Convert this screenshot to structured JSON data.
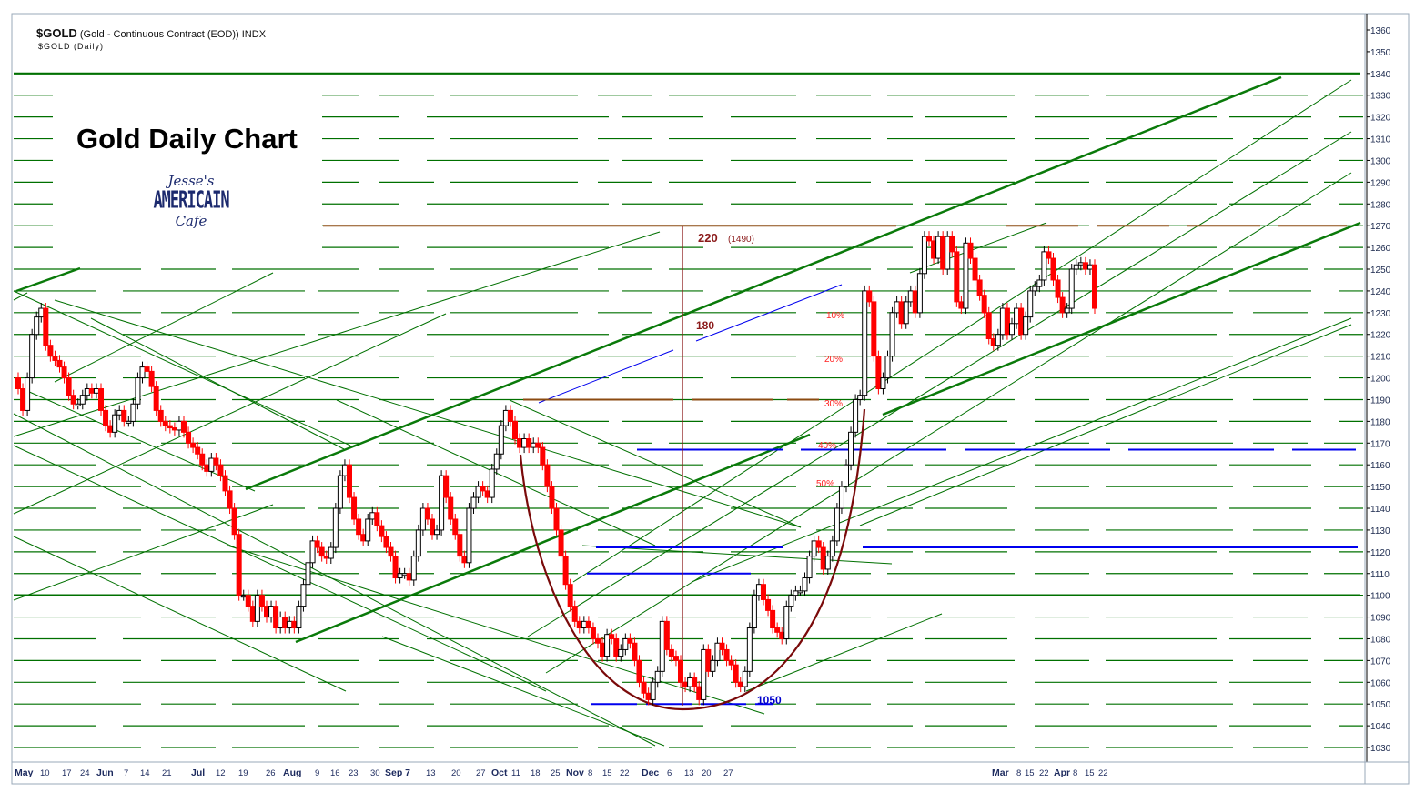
{
  "header": {
    "symbol": "$GOLD",
    "description": "(Gold - Continuous Contract (EOD)) INDX",
    "subtitle": "$GOLD (Daily)"
  },
  "overlay": {
    "title": "Gold Daily Chart",
    "logo_top": "Jesse's",
    "logo_mid": "AMERICAIN",
    "logo_bottom": "Cafe"
  },
  "chart_data": {
    "type": "candlestick",
    "title": "Gold Daily Chart",
    "ylim": [
      1025,
      1365
    ],
    "y_ticks": [
      1030,
      1040,
      1050,
      1060,
      1070,
      1080,
      1090,
      1100,
      1110,
      1120,
      1130,
      1140,
      1150,
      1160,
      1170,
      1180,
      1190,
      1200,
      1210,
      1220,
      1230,
      1240,
      1250,
      1260,
      1270,
      1280,
      1290,
      1300,
      1310,
      1320,
      1330,
      1340,
      1350,
      1360
    ],
    "x_ticks": [
      {
        "label": "May",
        "bold": true
      },
      {
        "label": "10"
      },
      {
        "label": "17"
      },
      {
        "label": "24"
      },
      {
        "label": "Jun",
        "bold": true
      },
      {
        "label": "7"
      },
      {
        "label": "14"
      },
      {
        "label": "21"
      },
      {
        "label": "Jul",
        "bold": true
      },
      {
        "label": "12"
      },
      {
        "label": "19"
      },
      {
        "label": "26"
      },
      {
        "label": "Aug",
        "bold": true
      },
      {
        "label": "9"
      },
      {
        "label": "16"
      },
      {
        "label": "23"
      },
      {
        "label": "30"
      },
      {
        "label": "Sep 7",
        "bold": true
      },
      {
        "label": "13"
      },
      {
        "label": "20"
      },
      {
        "label": "27"
      },
      {
        "label": "Oct",
        "bold": true
      },
      {
        "label": "11"
      },
      {
        "label": "18"
      },
      {
        "label": "25"
      },
      {
        "label": "Nov",
        "bold": true
      },
      {
        "label": "8"
      },
      {
        "label": "15"
      },
      {
        "label": "22"
      },
      {
        "label": "Dec",
        "bold": true
      },
      {
        "label": "6"
      },
      {
        "label": "13"
      },
      {
        "label": "20"
      },
      {
        "label": "27"
      },
      {
        "label": "Mar",
        "bold": true
      },
      {
        "label": "8"
      },
      {
        "label": "15"
      },
      {
        "label": "22"
      },
      {
        "label": "Apr",
        "bold": true
      },
      {
        "label": "8"
      },
      {
        "label": "15"
      },
      {
        "label": "22"
      }
    ],
    "closes": [
      1195,
      1185,
      1200,
      1220,
      1228,
      1232,
      1215,
      1210,
      1208,
      1205,
      1200,
      1192,
      1188,
      1188,
      1192,
      1195,
      1193,
      1195,
      1185,
      1178,
      1175,
      1183,
      1185,
      1180,
      1180,
      1188,
      1200,
      1205,
      1203,
      1196,
      1185,
      1180,
      1178,
      1177,
      1176,
      1180,
      1175,
      1170,
      1168,
      1165,
      1160,
      1157,
      1163,
      1160,
      1155,
      1148,
      1140,
      1128,
      1100,
      1100,
      1095,
      1088,
      1100,
      1095,
      1090,
      1095,
      1085,
      1090,
      1085,
      1088,
      1085,
      1095,
      1105,
      1115,
      1125,
      1122,
      1118,
      1117,
      1122,
      1140,
      1155,
      1160,
      1145,
      1135,
      1128,
      1125,
      1135,
      1138,
      1132,
      1127,
      1122,
      1118,
      1108,
      1110,
      1110,
      1107,
      1118,
      1130,
      1140,
      1135,
      1128,
      1130,
      1155,
      1145,
      1135,
      1128,
      1118,
      1115,
      1140,
      1145,
      1150,
      1148,
      1145,
      1158,
      1165,
      1178,
      1185,
      1180,
      1172,
      1168,
      1172,
      1168,
      1170,
      1168,
      1160,
      1150,
      1140,
      1130,
      1118,
      1105,
      1095,
      1088,
      1085,
      1088,
      1085,
      1080,
      1078,
      1072,
      1082,
      1080,
      1072,
      1075,
      1080,
      1078,
      1070,
      1060,
      1055,
      1052,
      1060,
      1065,
      1088,
      1075,
      1072,
      1070,
      1060,
      1058,
      1062,
      1058,
      1052,
      1075,
      1065,
      1070,
      1078,
      1075,
      1070,
      1068,
      1060,
      1058,
      1065,
      1085,
      1100,
      1105,
      1098,
      1093,
      1085,
      1083,
      1080,
      1095,
      1100,
      1102,
      1102,
      1108,
      1118,
      1125,
      1122,
      1112,
      1118,
      1125,
      1140,
      1150,
      1160,
      1175,
      1190,
      1192,
      1240,
      1235,
      1210,
      1195,
      1200,
      1210,
      1230,
      1235,
      1225,
      1235,
      1240,
      1230,
      1248,
      1265,
      1263,
      1255,
      1265,
      1250,
      1265,
      1258,
      1235,
      1232,
      1262,
      1255,
      1245,
      1238,
      1230,
      1218,
      1215,
      1220,
      1232,
      1220,
      1225,
      1232,
      1220,
      1228,
      1240,
      1242,
      1245,
      1258,
      1255,
      1245,
      1237,
      1230,
      1232,
      1250,
      1252,
      1253,
      1250,
      1252,
      1232
    ],
    "levels": [
      {
        "price": 1340,
        "color": "#007000",
        "style": "thick"
      },
      {
        "price": 1270,
        "color": "#8b4a10",
        "style": "resistance"
      },
      {
        "price": 1190,
        "color": "#8b4a10",
        "style": "support"
      },
      {
        "price": 1167,
        "color": "#0000ee",
        "style": "support"
      },
      {
        "price": 1122,
        "color": "#0000ee",
        "style": "support"
      },
      {
        "price": 1110,
        "color": "#0000ee",
        "style": "support"
      },
      {
        "price": 1100,
        "color": "#007000",
        "style": "thick"
      },
      {
        "price": 1050,
        "color": "#0000ee",
        "style": "support"
      }
    ],
    "annotations": [
      {
        "text": "220",
        "sub": "(1490)",
        "color": "#8b1a1a"
      },
      {
        "text": "180",
        "color": "#8b1a1a"
      },
      {
        "text": "10%",
        "color": "#ff2020"
      },
      {
        "text": "20%",
        "color": "#ff2020"
      },
      {
        "text": "30%",
        "color": "#ff2020"
      },
      {
        "text": "40%",
        "color": "#ff2020"
      },
      {
        "text": "50%",
        "color": "#ff2020"
      },
      {
        "text": "1050",
        "color": "#0000cc"
      }
    ],
    "colors": {
      "up": "#ffffff",
      "down": "#ff0000",
      "grid": "#007000",
      "cup": "#7a0a0a"
    }
  }
}
